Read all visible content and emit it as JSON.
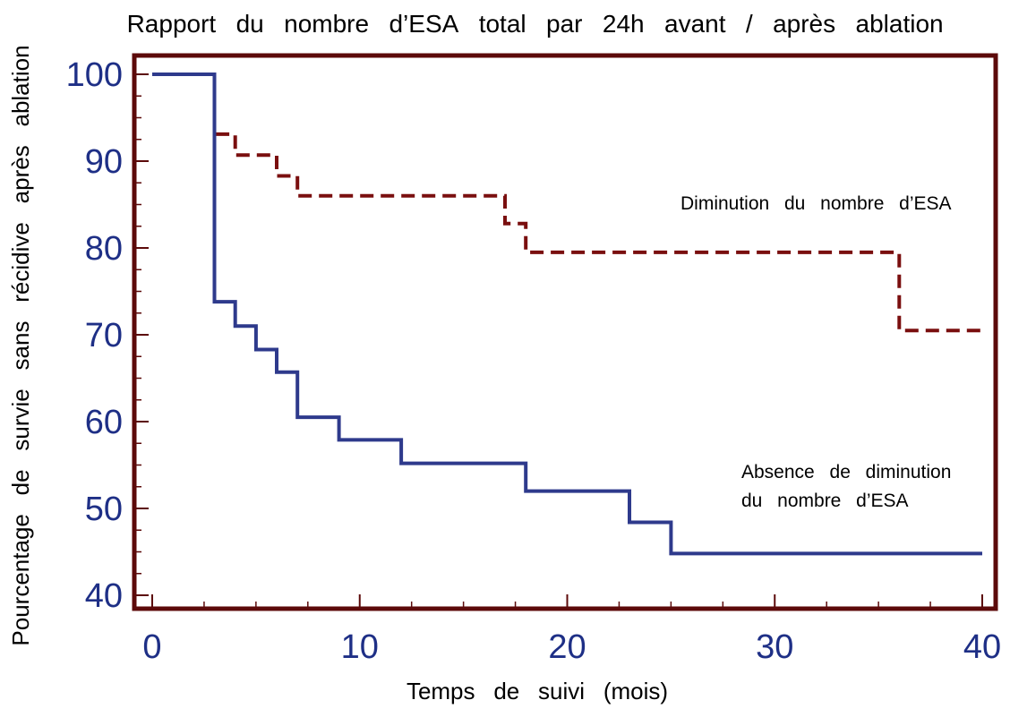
{
  "chart_data": {
    "type": "line",
    "title": "Rapportdunombred’ESAtotalpar24havant/aprèsablation",
    "xlabel": "Tempsdesuivi(mois)",
    "ylabel": "Pourcentagedesurviesansrécidiveaprèsablation",
    "xlim": [
      0,
      40
    ],
    "ylim": [
      40,
      100
    ],
    "x_ticks": [
      0,
      10,
      20,
      30,
      40
    ],
    "y_ticks": [
      100,
      90,
      80,
      70,
      60,
      50,
      40
    ],
    "step": true,
    "grid": false,
    "series": [
      {
        "name": "Diminutiondunombred’ESA",
        "style": "dashed",
        "color": "#7a0f0f",
        "x": [
          0,
          3,
          3,
          4,
          4,
          6,
          6,
          7,
          7,
          17,
          17,
          18,
          18,
          36,
          36,
          40
        ],
        "y": [
          100,
          100,
          93.1,
          93.1,
          90.7,
          90.7,
          88.3,
          88.3,
          86.0,
          86.0,
          82.8,
          82.8,
          79.5,
          79.5,
          70.5,
          70.5
        ]
      },
      {
        "name": "Absencedediminution dunombred’ESA",
        "style": "solid",
        "color": "#2e3a8c",
        "x": [
          0,
          3,
          3,
          4,
          4,
          5,
          5,
          6,
          6,
          7,
          7,
          9,
          9,
          12,
          12,
          18,
          18,
          23,
          23,
          25,
          25,
          40
        ],
        "y": [
          100,
          100,
          73.8,
          73.8,
          71.0,
          71.0,
          68.3,
          68.3,
          65.7,
          65.7,
          60.5,
          60.5,
          57.9,
          57.9,
          55.2,
          55.2,
          52.0,
          52.0,
          48.4,
          48.4,
          44.8,
          44.8
        ]
      }
    ],
    "annotations": [
      {
        "text": "Diminutiondunombred’ESA"
      },
      {
        "text": "Absencedediminution"
      },
      {
        "text": "dunombred’ESA"
      }
    ]
  }
}
